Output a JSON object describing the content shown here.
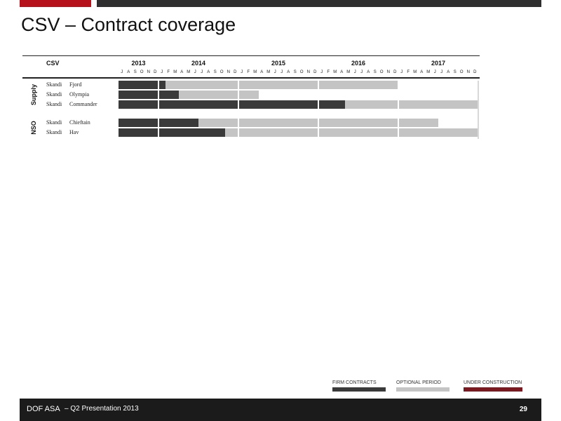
{
  "title": "CSV – Contract coverage",
  "chart_data": {
    "type": "table",
    "header_label": "CSV",
    "years": [
      {
        "label": "2013",
        "start_month": 0
      },
      {
        "label": "2014",
        "start_month": 6
      },
      {
        "label": "2015",
        "start_month": 18
      },
      {
        "label": "2016",
        "start_month": 30
      },
      {
        "label": "2017",
        "start_month": 42
      }
    ],
    "months": [
      "J",
      "A",
      "S",
      "O",
      "N",
      "D",
      "J",
      "F",
      "M",
      "A",
      "M",
      "J",
      "J",
      "A",
      "S",
      "O",
      "N",
      "D",
      "J",
      "F",
      "M",
      "A",
      "M",
      "J",
      "J",
      "A",
      "S",
      "O",
      "N",
      "D",
      "J",
      "F",
      "M",
      "A",
      "M",
      "J",
      "J",
      "A",
      "S",
      "O",
      "N",
      "D",
      "J",
      "F",
      "M",
      "A",
      "M",
      "J",
      "J",
      "A",
      "S",
      "O",
      "N",
      "D"
    ],
    "timeline_start": "Jul 2013",
    "groups": [
      {
        "label": "Supply",
        "vessels": [
          {
            "name_1": "Skandi",
            "name_2": "Fjord",
            "firm": [
              0,
              7
            ],
            "optional": [
              7,
              42
            ]
          },
          {
            "name_1": "Skandi",
            "name_2": "Olympia",
            "firm": [
              0,
              9
            ],
            "optional": [
              9,
              21
            ]
          },
          {
            "name_1": "Skandi",
            "name_2": "Commander",
            "firm": [
              0,
              34
            ],
            "optional": [
              34,
              54
            ]
          }
        ]
      },
      {
        "label": "NSO",
        "vessels": [
          {
            "name_1": "Skandi",
            "name_2": "Chieftain",
            "firm": [
              0,
              12
            ],
            "optional": [
              12,
              48
            ]
          },
          {
            "name_1": "Skandi",
            "name_2": "Hav",
            "firm": [
              0,
              16
            ],
            "optional": [
              16,
              54
            ]
          }
        ]
      }
    ]
  },
  "legend": [
    {
      "label": "FIRM CONTRACTS",
      "color": "#3a3a3a"
    },
    {
      "label": "OPTIONAL PERIOD",
      "color": "#c4c4c4"
    },
    {
      "label": "UNDER CONSTRUCTION",
      "color": "#7a1a20"
    }
  ],
  "footer": {
    "company": "DOF ASA",
    "presentation": "– Q2 Presentation 2013",
    "page_number": "29"
  }
}
